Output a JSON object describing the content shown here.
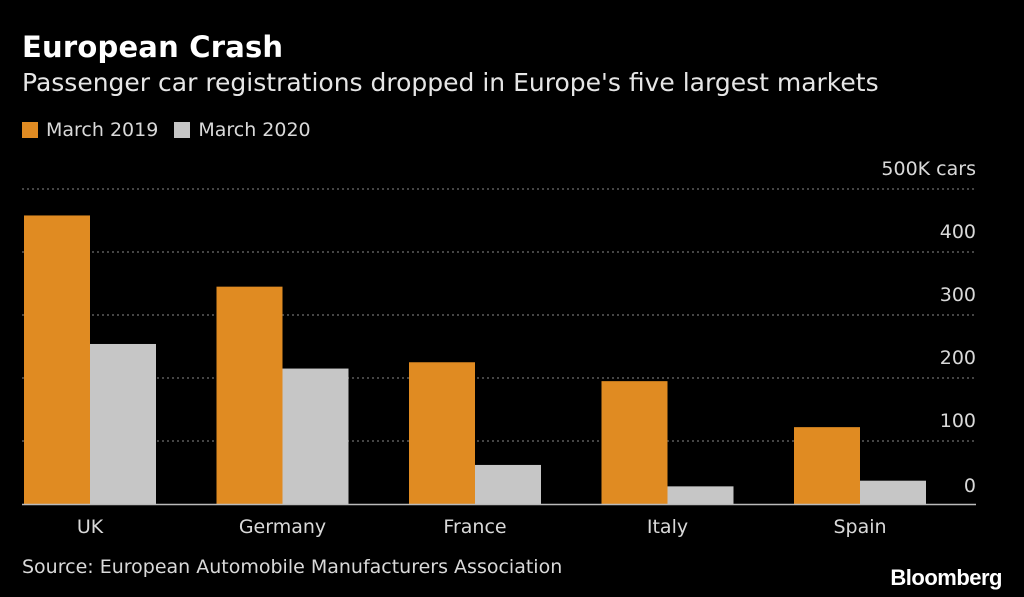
{
  "header": {
    "title": "European Crash",
    "subtitle": "Passenger car registrations dropped in Europe's five largest markets"
  },
  "legend": [
    {
      "label": "March 2019",
      "color": "#e08b22"
    },
    {
      "label": "March 2020",
      "color": "#c6c6c6"
    }
  ],
  "footer": {
    "source": "Source: European Automobile Manufacturers Association",
    "brand": "Bloomberg"
  },
  "chart_data": {
    "type": "bar",
    "categories": [
      "UK",
      "Germany",
      "France",
      "Italy",
      "Spain"
    ],
    "series": [
      {
        "name": "March 2019",
        "values": [
          458,
          345,
          225,
          195,
          122
        ],
        "color": "#e08b22"
      },
      {
        "name": "March 2020",
        "values": [
          254,
          215,
          62,
          28,
          37
        ],
        "color": "#c6c6c6"
      }
    ],
    "ylim": [
      0,
      500
    ],
    "yticks": [
      0,
      100,
      200,
      300,
      400,
      500
    ],
    "ytick_labels": [
      "0",
      "100",
      "200",
      "300",
      "400",
      "500K cars"
    ],
    "grid": true,
    "legend_position": "top-left"
  }
}
